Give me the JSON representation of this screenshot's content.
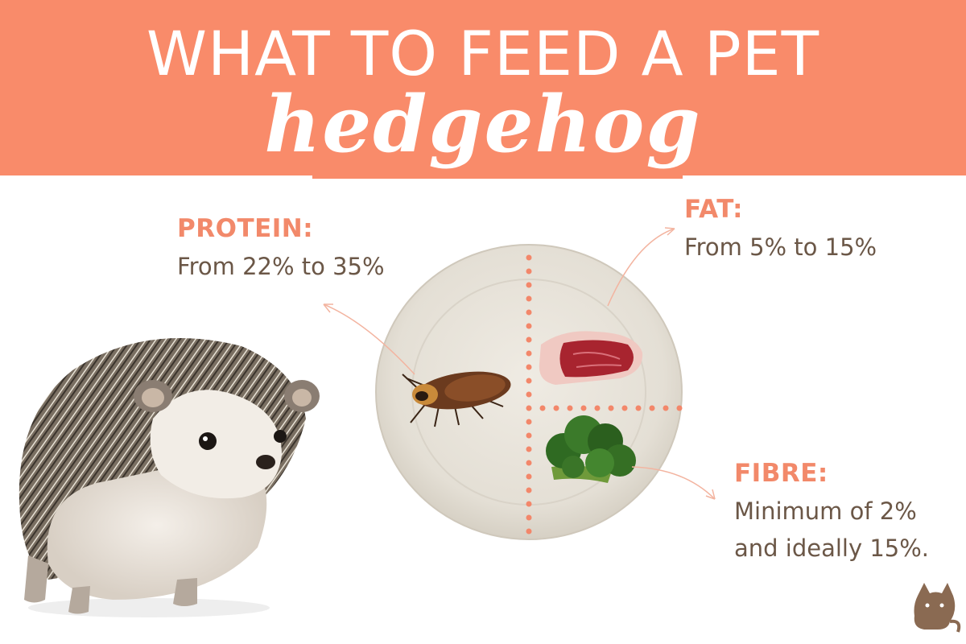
{
  "header": {
    "title": "WHAT TO FEED A PET",
    "subtitle": "hedgehog",
    "background_color": "#f98b6a"
  },
  "nutrients": {
    "protein": {
      "heading": "PROTEIN:",
      "text": "From 22% to 35%"
    },
    "fat": {
      "heading": "FAT:",
      "text": "From 5% to 15%"
    },
    "fibre": {
      "heading": "FIBRE:",
      "line1": "Minimum of 2%",
      "line2": "and ideally 15%."
    }
  },
  "colors": {
    "accent": "#f2896a",
    "body_text": "#6b5747",
    "plate": "#e8e4dc",
    "dots": "#f3876a"
  },
  "illustrations": {
    "animal": "hedgehog",
    "plate_items": [
      "cockroach",
      "beef-steak",
      "broccoli"
    ],
    "logo": "cat-logo-icon"
  }
}
